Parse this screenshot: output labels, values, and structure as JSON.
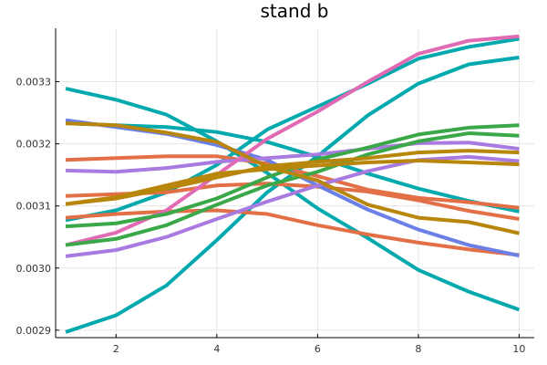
{
  "chart_data": {
    "type": "line",
    "title": "stand b",
    "xlabel": "",
    "ylabel": "",
    "xlim": [
      0.8,
      10.3
    ],
    "ylim": [
      0.002888,
      0.003386
    ],
    "x_ticks": [
      2,
      4,
      6,
      8,
      10
    ],
    "y_ticks": [
      0.0029,
      0.003,
      0.0031,
      0.0032,
      0.0033
    ],
    "y_tick_labels": [
      "0.0029",
      "0.0030",
      "0.0031",
      "0.0032",
      "0.0033"
    ],
    "grid": true,
    "legend": "none",
    "x": [
      1,
      2,
      3,
      4,
      5,
      6,
      7,
      8,
      9,
      10
    ],
    "series": [
      {
        "color": "#00a9ad",
        "values": [
          0.003289,
          0.003271,
          0.003247,
          0.003204,
          0.003153,
          0.003096,
          0.003048,
          0.002997,
          0.002962,
          0.002933
        ]
      },
      {
        "color": "#00a9ad",
        "values": [
          0.003233,
          0.00323,
          0.003227,
          0.003219,
          0.003203,
          0.003179,
          0.003152,
          0.003128,
          0.003108,
          0.003091
        ]
      },
      {
        "color": "#00a9ad",
        "values": [
          0.002897,
          0.002924,
          0.002972,
          0.003045,
          0.003122,
          0.00318,
          0.003246,
          0.003297,
          0.003328,
          0.003339
        ]
      },
      {
        "color": "#00a9ad",
        "values": [
          0.003077,
          0.003093,
          0.003122,
          0.003166,
          0.003223,
          0.00326,
          0.003297,
          0.003337,
          0.003356,
          0.003369
        ]
      },
      {
        "color": "#e26f46",
        "values": [
          0.003081,
          0.003087,
          0.003091,
          0.003093,
          0.003087,
          0.003069,
          0.003054,
          0.003041,
          0.00303,
          0.003021
        ]
      },
      {
        "color": "#e26f46",
        "values": [
          0.003174,
          0.003177,
          0.00318,
          0.00318,
          0.003168,
          0.003148,
          0.003126,
          0.003113,
          0.003106,
          0.003097
        ]
      },
      {
        "color": "#e26f46",
        "values": [
          0.003116,
          0.003119,
          0.003122,
          0.003133,
          0.003136,
          0.003131,
          0.003123,
          0.003109,
          0.003092,
          0.003079
        ]
      },
      {
        "color": "#6b7fe6",
        "values": [
          0.003238,
          0.003227,
          0.003216,
          0.003198,
          0.003174,
          0.003133,
          0.003094,
          0.003062,
          0.003037,
          0.00302
        ]
      },
      {
        "color": "#a97be0",
        "values": [
          0.003157,
          0.003155,
          0.003161,
          0.003171,
          0.003177,
          0.003183,
          0.003192,
          0.003201,
          0.003202,
          0.003192
        ]
      },
      {
        "color": "#a97be0",
        "values": [
          0.003019,
          0.003029,
          0.00305,
          0.003079,
          0.003107,
          0.003133,
          0.003156,
          0.003174,
          0.003179,
          0.003172
        ]
      },
      {
        "color": "#e06bb4",
        "values": [
          0.003037,
          0.003057,
          0.003093,
          0.00315,
          0.003208,
          0.003252,
          0.0033,
          0.003345,
          0.003366,
          0.003373
        ]
      },
      {
        "color": "#3aa848",
        "values": [
          0.003067,
          0.003072,
          0.003087,
          0.003112,
          0.003146,
          0.003175,
          0.003194,
          0.003215,
          0.003226,
          0.00323
        ]
      },
      {
        "color": "#3aa848",
        "values": [
          0.003037,
          0.003047,
          0.003069,
          0.003102,
          0.003133,
          0.003155,
          0.003183,
          0.003204,
          0.003217,
          0.003213
        ]
      },
      {
        "color": "#b8860b",
        "values": [
          0.003103,
          0.003112,
          0.003128,
          0.003146,
          0.003164,
          0.003171,
          0.003177,
          0.003186,
          0.003189,
          0.003186
        ]
      },
      {
        "color": "#b8860b",
        "values": [
          0.003233,
          0.00323,
          0.003218,
          0.003203,
          0.003163,
          0.003141,
          0.003102,
          0.003081,
          0.003074,
          0.003056
        ]
      },
      {
        "color": "#b8860b",
        "values": [
          0.003103,
          0.003114,
          0.003133,
          0.003152,
          0.003159,
          0.003165,
          0.00317,
          0.003173,
          0.00317,
          0.003167
        ]
      }
    ]
  }
}
